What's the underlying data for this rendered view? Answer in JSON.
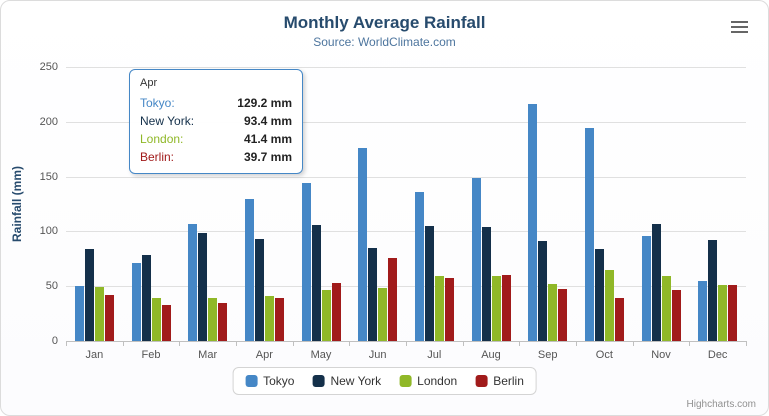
{
  "header": {
    "title": "Monthly Average Rainfall",
    "subtitle": "Source: WorldClimate.com",
    "menu_icon": "hamburger-icon"
  },
  "colors": {
    "title": "#274b6d",
    "subtitle": "#4d759e",
    "axis_title": "#274b6d",
    "axis_label": "#555555",
    "grid": "#e0e0e0",
    "axis_line": "#c0c0c0",
    "tooltip_border": "#4587c6"
  },
  "chart_data": {
    "type": "bar",
    "title": "Monthly Average Rainfall",
    "subtitle": "Source: WorldClimate.com",
    "xlabel": "",
    "ylabel": "Rainfall (mm)",
    "ylim": [
      0,
      250
    ],
    "ytick_step": 50,
    "grid": true,
    "legend_position": "bottom",
    "categories": [
      "Jan",
      "Feb",
      "Mar",
      "Apr",
      "May",
      "Jun",
      "Jul",
      "Aug",
      "Sep",
      "Oct",
      "Nov",
      "Dec"
    ],
    "series": [
      {
        "name": "Tokyo",
        "color": "#4587c6",
        "values": [
          49.9,
          71.5,
          106.4,
          129.2,
          144.0,
          176.0,
          135.6,
          148.5,
          216.4,
          194.1,
          95.6,
          54.4
        ]
      },
      {
        "name": "New York",
        "color": "#14304a",
        "values": [
          83.6,
          78.8,
          98.5,
          93.4,
          106.0,
          84.5,
          105.0,
          104.3,
          91.2,
          83.5,
          106.6,
          92.3
        ]
      },
      {
        "name": "London",
        "color": "#90b828",
        "values": [
          48.9,
          38.8,
          39.3,
          41.4,
          47.0,
          48.3,
          59.0,
          59.6,
          52.4,
          65.2,
          59.3,
          51.2
        ]
      },
      {
        "name": "Berlin",
        "color": "#a11b1b",
        "values": [
          42.4,
          33.2,
          34.5,
          39.7,
          52.6,
          75.5,
          57.4,
          60.4,
          47.6,
          39.1,
          46.8,
          51.1
        ]
      }
    ]
  },
  "tooltip": {
    "category": "Apr",
    "rows": [
      {
        "label": "Tokyo:",
        "value": "129.2 mm"
      },
      {
        "label": "New York:",
        "value": "93.4 mm"
      },
      {
        "label": "London:",
        "value": "41.4 mm"
      },
      {
        "label": "Berlin:",
        "value": "39.7 mm"
      }
    ]
  },
  "credits": "Highcharts.com"
}
